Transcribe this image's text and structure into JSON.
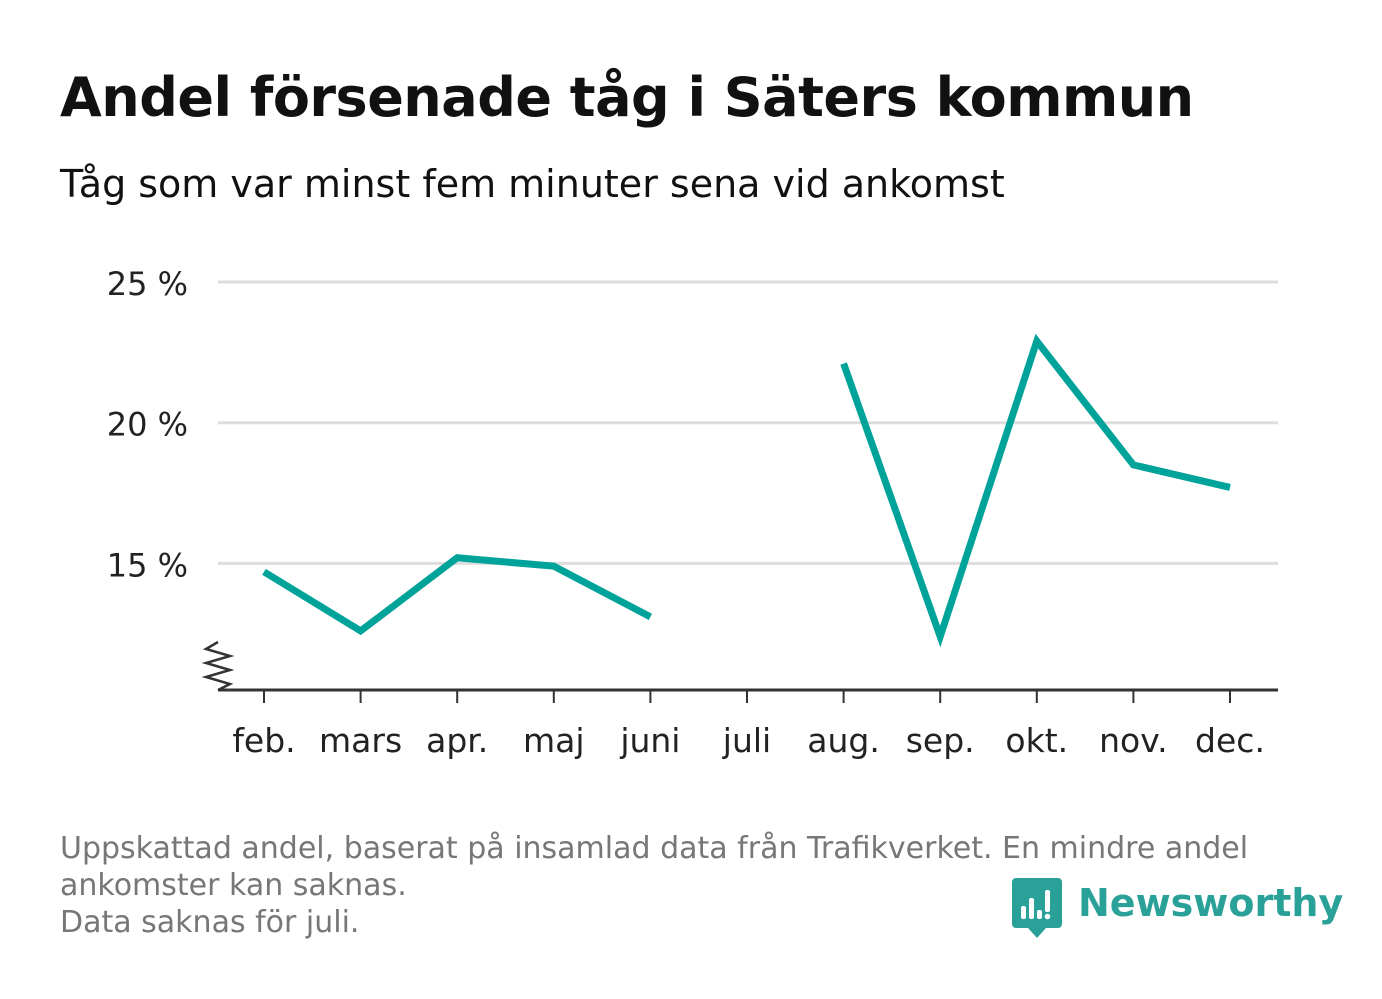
{
  "title": "Andel försenade tåg i Säters kommun",
  "subtitle": "Tåg som var minst fem minuter sena vid ankomst",
  "footnote": {
    "line1": "Uppskattad andel, baserat på insamlad data från Trafikverket. En mindre andel",
    "line2": "ankomster kan saknas.",
    "line3": "Data saknas för juli."
  },
  "brand": {
    "name": "Newsworthy",
    "icon": "newsworthy-logo-icon"
  },
  "colors": {
    "line": "#00a39a",
    "grid": "#dddddd",
    "axis": "#333333",
    "brand": "#2aa198"
  },
  "chart_data": {
    "type": "line",
    "categories": [
      "feb.",
      "mars",
      "apr.",
      "maj",
      "juni",
      "juli",
      "aug.",
      "sep.",
      "okt.",
      "nov.",
      "dec."
    ],
    "series": [
      {
        "values": [
          14.7,
          12.6,
          15.2,
          14.9,
          13.1,
          null,
          22.1,
          12.4,
          22.9,
          18.5,
          17.7
        ]
      }
    ],
    "yticks": [
      15,
      20,
      25
    ],
    "ytick_labels": [
      "15 %",
      "20 %",
      "25 %"
    ],
    "ylim": [
      10.5,
      25
    ],
    "y_axis_break": true,
    "grid": true,
    "xlabel": "",
    "ylabel": ""
  }
}
